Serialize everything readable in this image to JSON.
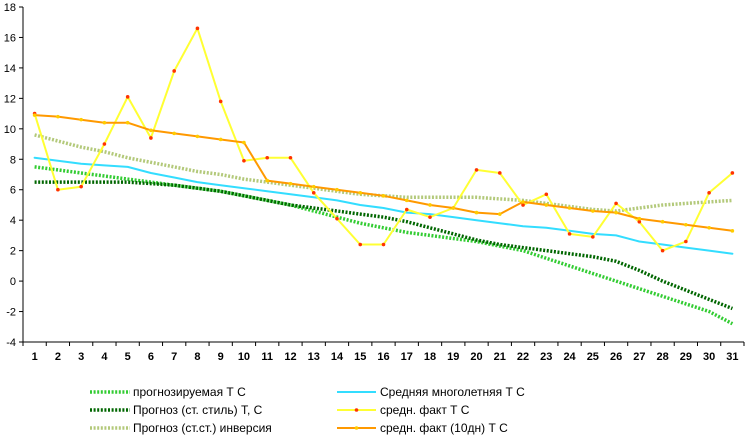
{
  "chart_data": {
    "type": "line",
    "x": [
      1,
      2,
      3,
      4,
      5,
      6,
      7,
      8,
      9,
      10,
      11,
      12,
      13,
      14,
      15,
      16,
      17,
      18,
      19,
      20,
      21,
      22,
      23,
      24,
      25,
      26,
      27,
      28,
      29,
      30,
      31
    ],
    "ylim": [
      -4,
      18
    ],
    "yticks": [
      -4,
      -2,
      0,
      2,
      4,
      6,
      8,
      10,
      12,
      14,
      16,
      18
    ],
    "grid": false,
    "legend_position": "bottom",
    "series": [
      {
        "name": "прогнозируемая Т С",
        "color": "#33cc33",
        "style": "dotted-thick",
        "values": [
          7.5,
          7.3,
          7.1,
          6.9,
          6.7,
          6.5,
          6.3,
          6.1,
          5.9,
          5.6,
          5.3,
          5.0,
          4.6,
          4.2,
          3.8,
          3.5,
          3.2,
          3.0,
          2.8,
          2.6,
          2.3,
          2.0,
          1.5,
          1.0,
          0.5,
          0.0,
          -0.5,
          -1.0,
          -1.5,
          -2.0,
          -2.8
        ]
      },
      {
        "name": "Прогноз (ст. стиль) Т, С",
        "color": "#006600",
        "style": "dotted-thick",
        "values": [
          6.5,
          6.5,
          6.5,
          6.5,
          6.5,
          6.4,
          6.3,
          6.1,
          5.9,
          5.6,
          5.3,
          5.0,
          4.8,
          4.6,
          4.4,
          4.2,
          3.9,
          3.5,
          3.1,
          2.7,
          2.4,
          2.2,
          2.0,
          1.8,
          1.6,
          1.3,
          0.7,
          0.0,
          -0.6,
          -1.2,
          -1.8
        ]
      },
      {
        "name": "Прогноз (ст.ст.) инверсия",
        "color": "#b3c97a",
        "style": "dotted-thick",
        "values": [
          9.6,
          9.2,
          8.8,
          8.5,
          8.1,
          7.8,
          7.5,
          7.2,
          7.0,
          6.7,
          6.5,
          6.3,
          6.1,
          5.9,
          5.7,
          5.6,
          5.5,
          5.5,
          5.5,
          5.5,
          5.4,
          5.3,
          5.1,
          4.9,
          4.7,
          4.6,
          4.8,
          5.0,
          5.1,
          5.2,
          5.3
        ]
      },
      {
        "name": "Средняя многолетняя Т С",
        "color": "#33ddff",
        "style": "solid",
        "values": [
          8.1,
          7.9,
          7.7,
          7.6,
          7.5,
          7.1,
          6.8,
          6.5,
          6.3,
          6.1,
          5.9,
          5.7,
          5.5,
          5.3,
          5.0,
          4.8,
          4.5,
          4.4,
          4.2,
          4.0,
          3.8,
          3.6,
          3.5,
          3.3,
          3.1,
          3.0,
          2.6,
          2.4,
          2.2,
          2.0,
          1.8
        ]
      },
      {
        "name": "средн. факт Т С",
        "color": "#ffff33",
        "style": "solid-markers",
        "marker_color": "#ff3300",
        "values": [
          11.0,
          6.0,
          6.2,
          9.0,
          12.1,
          9.4,
          13.8,
          16.6,
          11.8,
          7.9,
          8.1,
          8.1,
          5.8,
          4.1,
          2.4,
          2.4,
          4.7,
          4.2,
          4.8,
          7.3,
          7.1,
          5.0,
          5.7,
          3.1,
          2.9,
          5.1,
          3.9,
          2.0,
          2.6,
          5.8,
          7.1
        ]
      },
      {
        "name": "средн. факт (10дн) Т С",
        "color": "#ff9900",
        "style": "solid-markers",
        "marker_color": "#ffcc00",
        "values": [
          10.9,
          10.8,
          10.6,
          10.4,
          10.4,
          9.9,
          9.7,
          9.5,
          9.3,
          9.1,
          6.6,
          6.4,
          6.2,
          6.0,
          5.8,
          5.6,
          5.3,
          5.0,
          4.8,
          4.5,
          4.4,
          5.2,
          5.0,
          4.8,
          4.6,
          4.5,
          4.1,
          3.9,
          3.7,
          3.5,
          3.3
        ]
      }
    ],
    "legend_order": [
      0,
      3,
      1,
      4,
      2,
      5
    ]
  }
}
